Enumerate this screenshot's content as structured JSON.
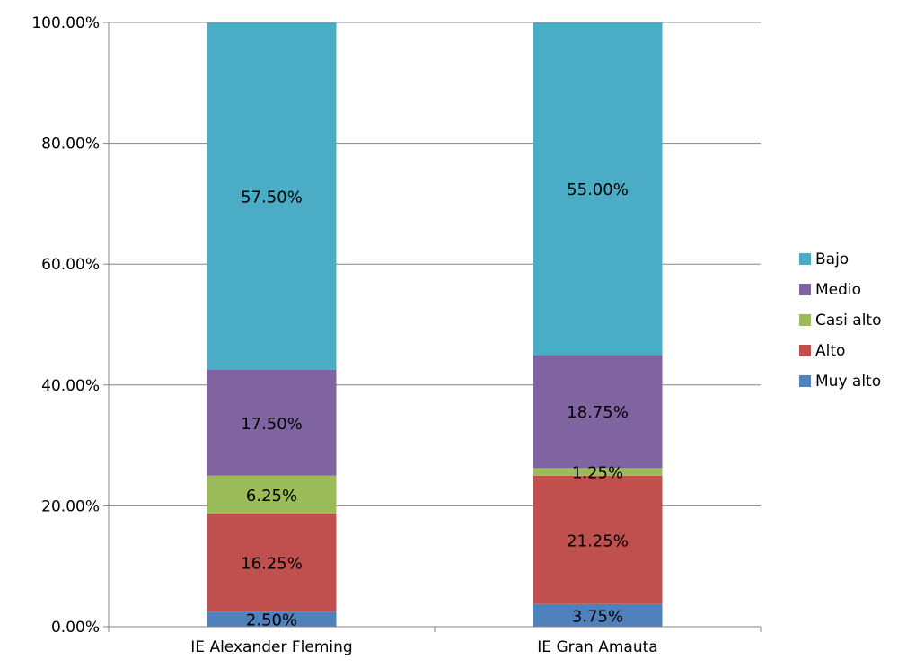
{
  "chart_data": {
    "type": "bar",
    "stacked": true,
    "title": "",
    "xlabel": "",
    "ylabel": "",
    "categories": [
      "IE Alexander Fleming",
      "IE Gran Amauta"
    ],
    "ylim": [
      0,
      100
    ],
    "y_ticks": [
      "0.00%",
      "20.00%",
      "40.00%",
      "60.00%",
      "80.00%",
      "100.00%"
    ],
    "y_tick_values": [
      0,
      20,
      40,
      60,
      80,
      100
    ],
    "grid": true,
    "legend_position": "right",
    "series": [
      {
        "name": "Muy alto",
        "color": "#4f81bd",
        "values": [
          2.5,
          3.75
        ],
        "labels": [
          "2.50%",
          "3.75%"
        ]
      },
      {
        "name": "Alto",
        "color": "#c0504d",
        "values": [
          16.25,
          21.25
        ],
        "labels": [
          "16.25%",
          "21.25%"
        ]
      },
      {
        "name": "Casi alto",
        "color": "#9bbb59",
        "values": [
          6.25,
          1.25
        ],
        "labels": [
          "6.25%",
          "1.25%"
        ]
      },
      {
        "name": "Medio",
        "color": "#8064a2",
        "values": [
          17.5,
          18.75
        ],
        "labels": [
          "17.50%",
          "18.75%"
        ]
      },
      {
        "name": "Bajo",
        "color": "#4bacc6",
        "values": [
          57.5,
          55.0
        ],
        "labels": [
          "57.50%",
          "55.00%"
        ]
      }
    ],
    "legend_order": [
      "Bajo",
      "Medio",
      "Casi alto",
      "Alto",
      "Muy alto"
    ]
  }
}
